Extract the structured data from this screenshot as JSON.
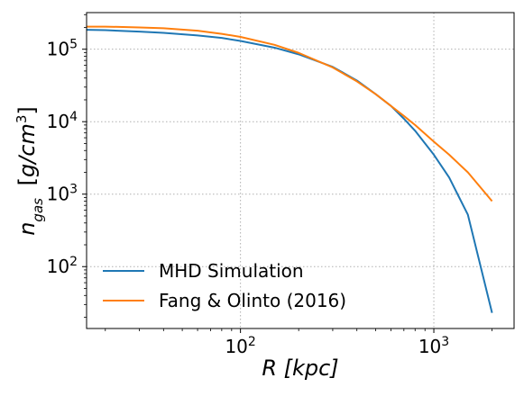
{
  "chart_data": {
    "type": "line",
    "title": "",
    "xlabel": "R [kpc]",
    "ylabel": "n_gas [g/cm^3]",
    "x_scale": "log",
    "y_scale": "log",
    "xlim": [
      16,
      2600
    ],
    "ylim": [
      14,
      320000
    ],
    "grid": true,
    "legend_position": "lower-left",
    "x_ticks": [
      {
        "value": 100,
        "label": "10^2"
      },
      {
        "value": 1000,
        "label": "10^3"
      }
    ],
    "y_ticks": [
      {
        "value": 100,
        "label": "10^2"
      },
      {
        "value": 1000,
        "label": "10^3"
      },
      {
        "value": 10000,
        "label": "10^4"
      },
      {
        "value": 100000,
        "label": "10^5"
      }
    ],
    "series": [
      {
        "name": "MHD Simulation",
        "color": "#1f77b4",
        "x": [
          16,
          20,
          30,
          40,
          60,
          80,
          100,
          150,
          200,
          300,
          400,
          500,
          600,
          700,
          800,
          1000,
          1200,
          1500,
          2000
        ],
        "y": [
          185000,
          183000,
          175000,
          168000,
          155000,
          143000,
          130000,
          105000,
          85000,
          57000,
          37000,
          24000,
          16500,
          11000,
          7500,
          3500,
          1700,
          520,
          23
        ]
      },
      {
        "name": "Fang & Olinto (2016)",
        "color": "#ff7f0e",
        "x": [
          16,
          20,
          30,
          40,
          60,
          80,
          100,
          150,
          200,
          300,
          400,
          500,
          600,
          700,
          800,
          1000,
          1200,
          1500,
          2000
        ],
        "y": [
          205000,
          205000,
          200000,
          195000,
          180000,
          163000,
          148000,
          115000,
          89000,
          56000,
          36000,
          24000,
          16500,
          12000,
          9000,
          5300,
          3500,
          2000,
          800
        ]
      }
    ]
  }
}
